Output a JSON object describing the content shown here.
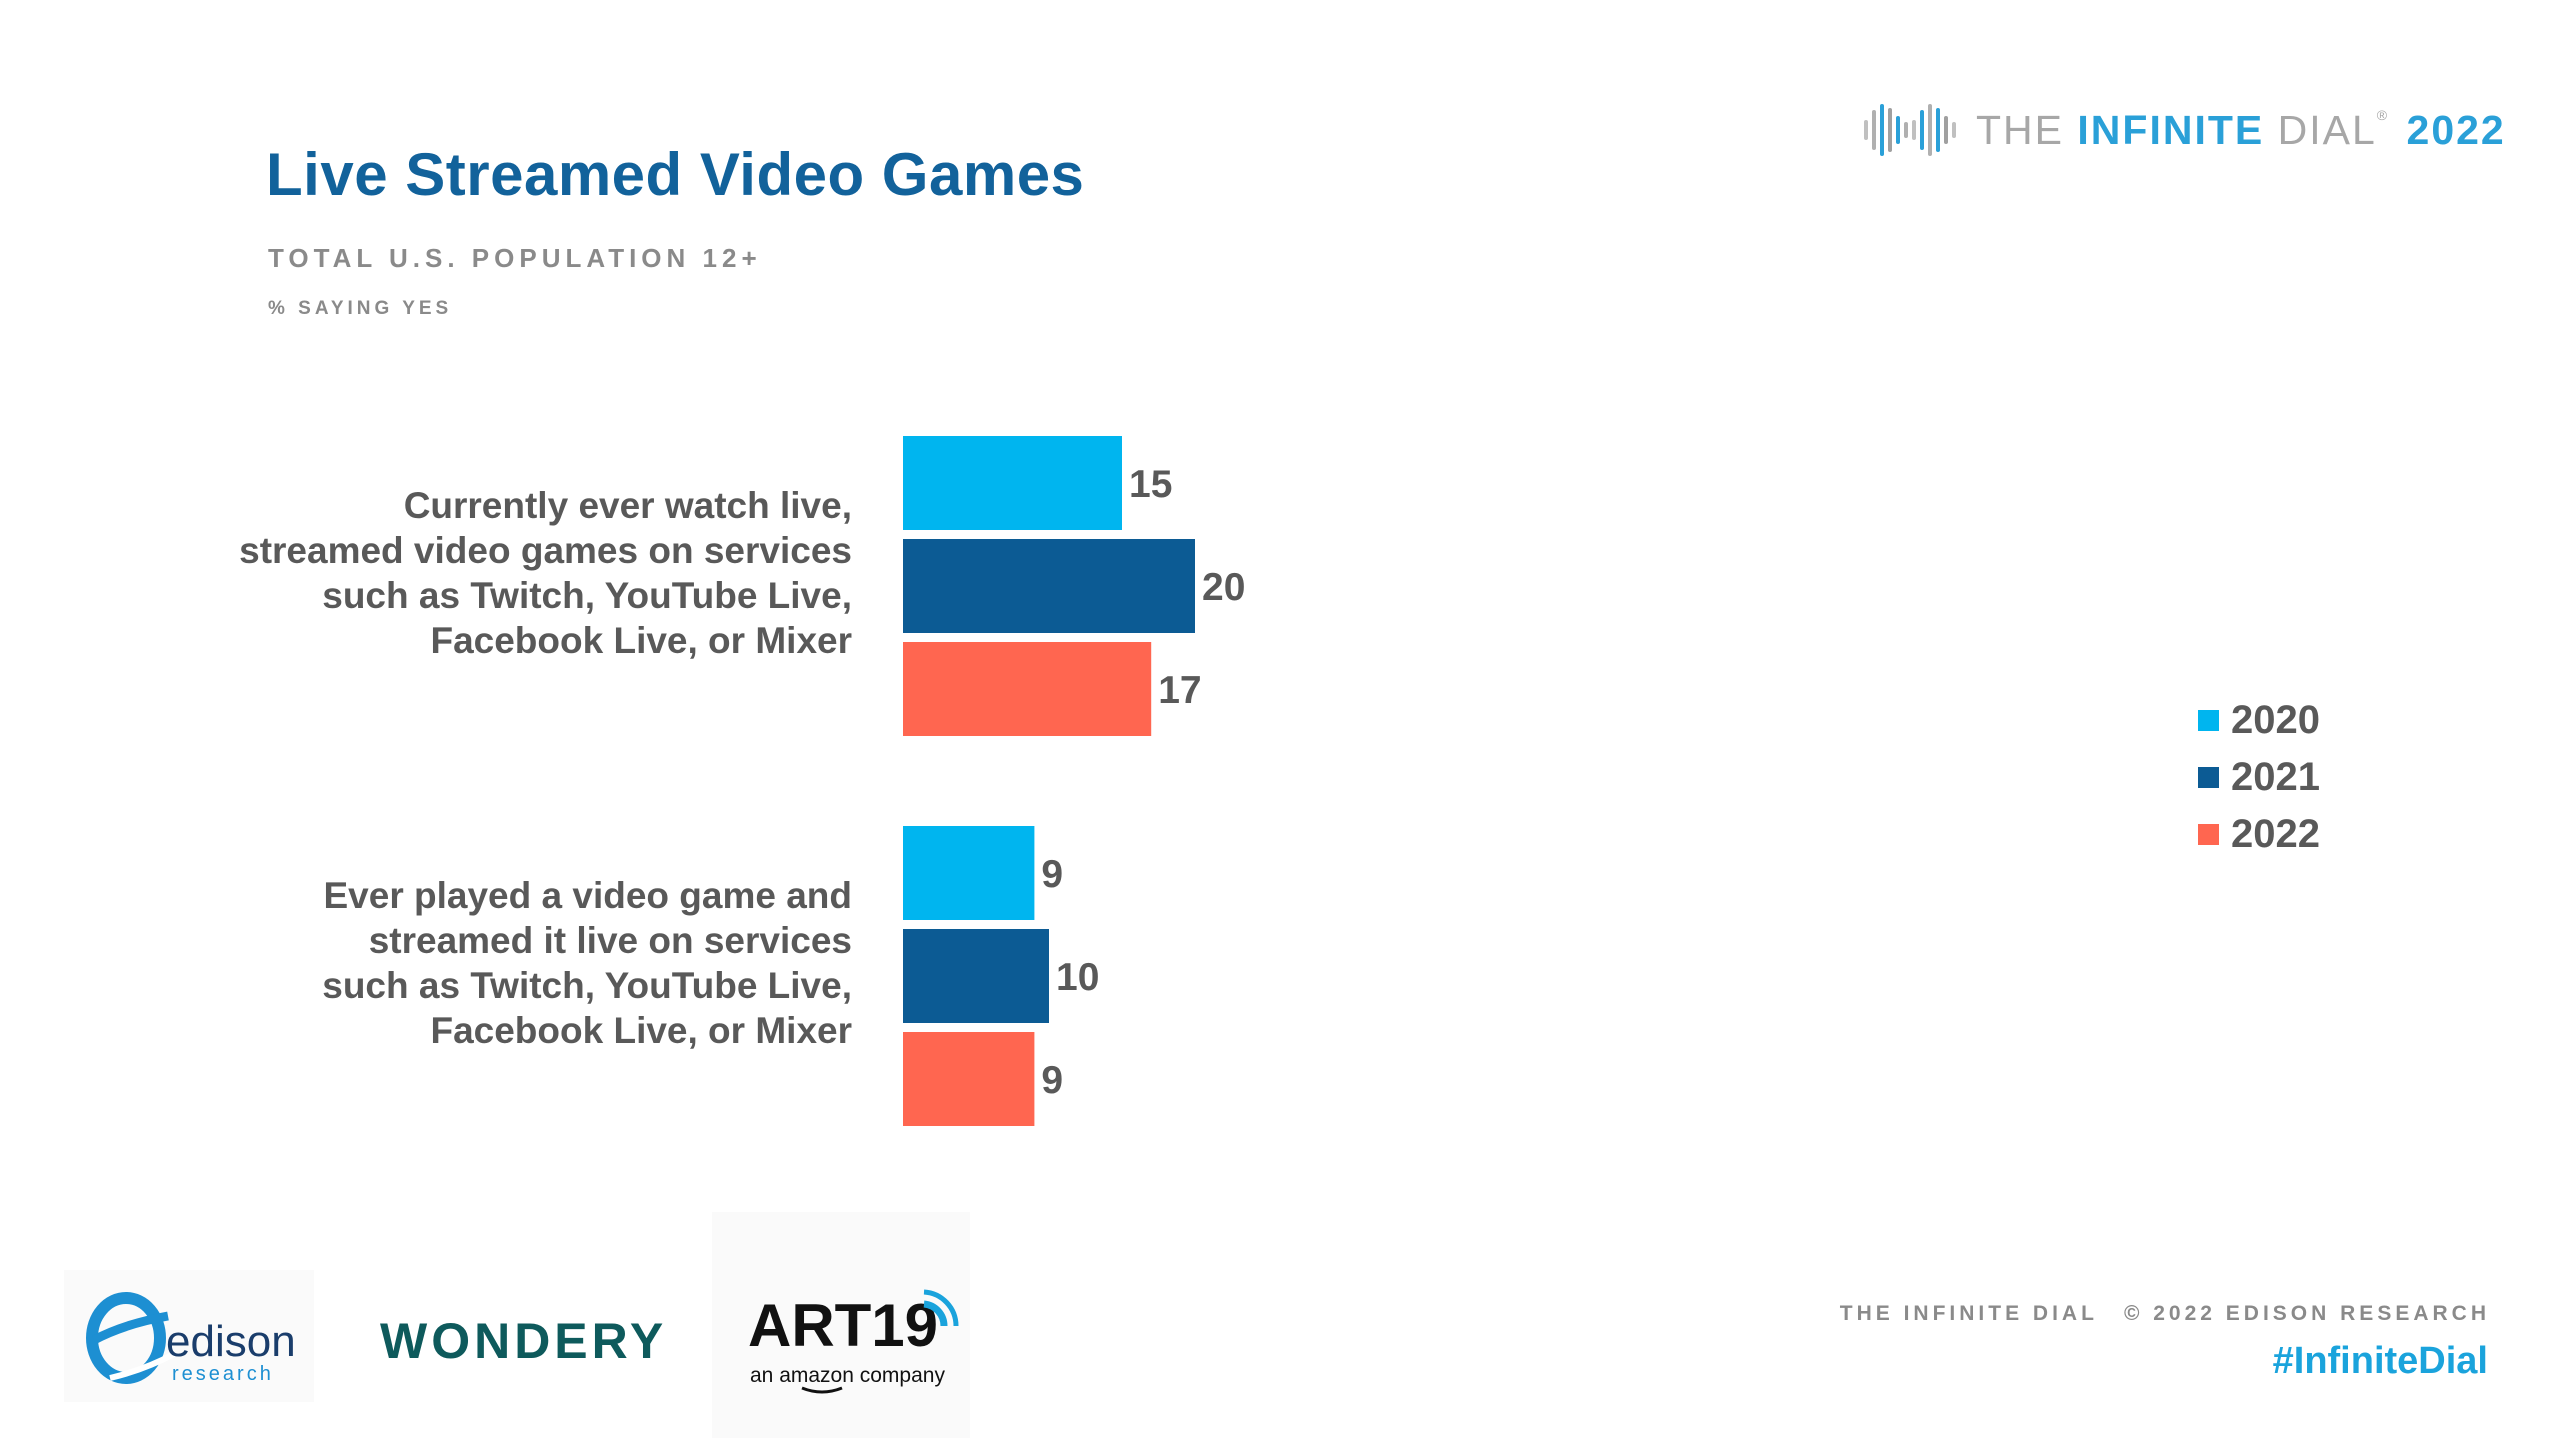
{
  "header": {
    "title": "Live Streamed Video Games",
    "subtitle": "TOTAL U.S. POPULATION 12+",
    "note": "% SAYING YES"
  },
  "brand": {
    "prefix": "THE ",
    "accent": "INFINITE",
    "suffix": " DIAL",
    "reg": "®",
    "year": "2022"
  },
  "chart_data": {
    "type": "bar",
    "orientation": "horizontal",
    "categories": [
      [
        "Currently ever watch live,",
        "streamed video games on services",
        "such as Twitch, YouTube Live,",
        "Facebook Live, or Mixer"
      ],
      [
        "Ever played a video game and",
        "streamed it live on services",
        "such as Twitch, YouTube Live,",
        "Facebook Live, or Mixer"
      ]
    ],
    "series": [
      {
        "name": "2020",
        "color": "#00b5ef",
        "values": [
          15,
          9
        ]
      },
      {
        "name": "2021",
        "color": "#0c5b94",
        "values": [
          20,
          10
        ]
      },
      {
        "name": "2022",
        "color": "#ff6650",
        "values": [
          17,
          9
        ]
      }
    ],
    "title": "Live Streamed Video Games",
    "xlabel": "",
    "ylabel": "% saying yes",
    "xlim": [
      0,
      100
    ],
    "grid": false,
    "legend": "right"
  },
  "footer": {
    "left": "THE INFINITE DIAL",
    "right": "© 2022 EDISON RESEARCH",
    "hashtag": "#InfiniteDial"
  },
  "logos": {
    "edison": {
      "name": "edison",
      "sub": "research"
    },
    "wondery": "WONDERY",
    "art19": {
      "name": "ART19",
      "sub": "an amazon company"
    }
  }
}
